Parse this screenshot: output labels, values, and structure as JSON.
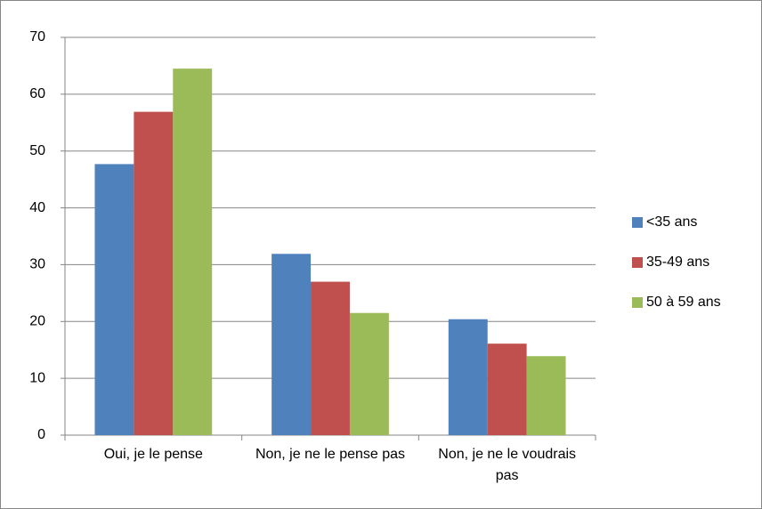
{
  "chart_data": {
    "type": "bar",
    "categories": [
      "Oui, je le pense",
      "Non, je ne le pense pas",
      "Non, je ne le voudrais pas"
    ],
    "series": [
      {
        "name": "<35 ans",
        "color": "#4f81bd",
        "values": [
          47.7,
          31.9,
          20.4
        ]
      },
      {
        "name": "35-49 ans",
        "color": "#c0504d",
        "values": [
          56.9,
          27,
          16.1
        ]
      },
      {
        "name": "50 à 59 ans",
        "color": "#9bbb59",
        "values": [
          64.5,
          21.5,
          13.9
        ]
      }
    ],
    "ylim": [
      0,
      70
    ],
    "yticks": [
      0,
      10,
      20,
      30,
      40,
      50,
      60,
      70
    ],
    "grid": true,
    "legend": "right"
  }
}
